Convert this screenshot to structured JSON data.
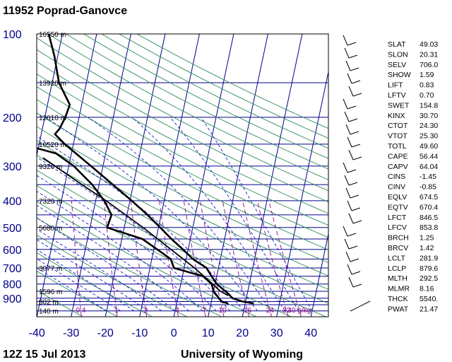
{
  "header": {
    "station_title": "11952  Poprad-Ganovce",
    "time_label": "12Z 15 Jul 2013",
    "source_label": "University of Wyoming"
  },
  "chart_data": {
    "type": "skew-t",
    "pressure_ticks": [
      100,
      200,
      300,
      400,
      500,
      600,
      700,
      800,
      900
    ],
    "temperature_ticks": [
      -40,
      -30,
      -20,
      -10,
      0,
      10,
      20,
      30,
      40
    ],
    "xlim": [
      -40,
      45
    ],
    "ylim_pressure": [
      1050,
      100
    ],
    "height_labels": [
      {
        "p": 100,
        "label": "16550 m"
      },
      {
        "p": 150,
        "label": "13920 m"
      },
      {
        "p": 200,
        "label": "12010 m"
      },
      {
        "p": 250,
        "label": "10520 m"
      },
      {
        "p": 300,
        "label": "9320 m"
      },
      {
        "p": 400,
        "label": "7320 m"
      },
      {
        "p": 500,
        "label": "5680 m"
      },
      {
        "p": 700,
        "label": "3077 m"
      },
      {
        "p": 850,
        "label": "1596 m"
      },
      {
        "p": 925,
        "label": "802 m"
      },
      {
        "p": 1000,
        "label": "140 m"
      }
    ],
    "mixing_ratio_labels": [
      "0.4",
      "1",
      "2",
      "4",
      "7",
      "10",
      "16",
      "24",
      "32",
      "40 g/kg"
    ],
    "temperature_profile": [
      {
        "p": 940,
        "t": 22.5
      },
      {
        "p": 925,
        "t": 19.0
      },
      {
        "p": 900,
        "t": 16.0
      },
      {
        "p": 850,
        "t": 13.5
      },
      {
        "p": 800,
        "t": 10.5
      },
      {
        "p": 750,
        "t": 8.5
      },
      {
        "p": 700,
        "t": 6.5
      },
      {
        "p": 650,
        "t": 2.0
      },
      {
        "p": 600,
        "t": -1.5
      },
      {
        "p": 550,
        "t": -5.5
      },
      {
        "p": 500,
        "t": -9.5
      },
      {
        "p": 450,
        "t": -14.0
      },
      {
        "p": 400,
        "t": -19.5
      },
      {
        "p": 350,
        "t": -26.0
      },
      {
        "p": 300,
        "t": -33.5
      },
      {
        "p": 250,
        "t": -42.5
      },
      {
        "p": 230,
        "t": -46.0
      },
      {
        "p": 220,
        "t": -45.0
      },
      {
        "p": 200,
        "t": -44.0
      },
      {
        "p": 180,
        "t": -43.5
      },
      {
        "p": 150,
        "t": -48.0
      },
      {
        "p": 120,
        "t": -51.0
      },
      {
        "p": 100,
        "t": -54.0
      }
    ],
    "dewpoint_profile": [
      {
        "p": 940,
        "t": 15.0
      },
      {
        "p": 925,
        "t": 13.0
      },
      {
        "p": 900,
        "t": 12.0
      },
      {
        "p": 850,
        "t": 10.0
      },
      {
        "p": 800,
        "t": 9.0
      },
      {
        "p": 750,
        "t": 6.0
      },
      {
        "p": 700,
        "t": -3.0
      },
      {
        "p": 650,
        "t": -4.5
      },
      {
        "p": 600,
        "t": -9.0
      },
      {
        "p": 550,
        "t": -14.0
      },
      {
        "p": 500,
        "t": -25.0
      },
      {
        "p": 450,
        "t": -24.5
      },
      {
        "p": 400,
        "t": -27.5
      },
      {
        "p": 350,
        "t": -32.0
      },
      {
        "p": 300,
        "t": -38.5
      },
      {
        "p": 270,
        "t": -44.5
      },
      {
        "p": 250,
        "t": -55.0
      },
      {
        "p": 220,
        "t": -64.0
      },
      {
        "p": 200,
        "t": -64.0
      },
      {
        "p": 180,
        "t": -63.0
      },
      {
        "p": 150,
        "t": -60.5
      },
      {
        "p": 130,
        "t": -58.0
      },
      {
        "p": 120,
        "t": -60.0
      },
      {
        "p": 100,
        "t": -64.0
      }
    ],
    "parcel_profile": [
      {
        "p": 880,
        "t": 14.5
      },
      {
        "p": 846,
        "t": 11.8
      },
      {
        "p": 800,
        "t": 9.3
      },
      {
        "p": 700,
        "t": 3.0
      },
      {
        "p": 600,
        "t": -5.0
      },
      {
        "p": 500,
        "t": -14.5
      },
      {
        "p": 400,
        "t": -27.0
      },
      {
        "p": 350,
        "t": -35.0
      },
      {
        "p": 300,
        "t": -44.0
      },
      {
        "p": 280,
        "t": -48.0
      }
    ]
  },
  "indices": [
    {
      "name": "SLAT",
      "value": "49.03"
    },
    {
      "name": "SLON",
      "value": "20.31"
    },
    {
      "name": "SELV",
      "value": "706.0"
    },
    {
      "name": "SHOW",
      "value": "1.59"
    },
    {
      "name": "LIFT",
      "value": "0.83"
    },
    {
      "name": "LFTV",
      "value": "0.70"
    },
    {
      "name": "SWET",
      "value": "154.8"
    },
    {
      "name": "KINX",
      "value": "30.70"
    },
    {
      "name": "CTOT",
      "value": "24.30"
    },
    {
      "name": "VTOT",
      "value": "25.30"
    },
    {
      "name": "TOTL",
      "value": "49.60"
    },
    {
      "name": "CAPE",
      "value": "56.44"
    },
    {
      "name": "CAPV",
      "value": "64.04"
    },
    {
      "name": "CINS",
      "value": "-1.45"
    },
    {
      "name": "CINV",
      "value": "-0.85"
    },
    {
      "name": "EQLV",
      "value": "674.5"
    },
    {
      "name": "EQTV",
      "value": "670.4"
    },
    {
      "name": "LFCT",
      "value": "846.5"
    },
    {
      "name": "LFCV",
      "value": "853.8"
    },
    {
      "name": "BRCH",
      "value": "1.25"
    },
    {
      "name": "BRCV",
      "value": "1.42"
    },
    {
      "name": "LCLT",
      "value": "281.9"
    },
    {
      "name": "LCLP",
      "value": "879.6"
    },
    {
      "name": "MLTH",
      "value": "292.5"
    },
    {
      "name": "MLMR",
      "value": "8.16"
    },
    {
      "name": "THCK",
      "value": "5540."
    },
    {
      "name": "PWAT",
      "value": "21.47"
    }
  ],
  "colors": {
    "isobar": "#00008b",
    "isotherm": "#00008b",
    "dry_adiabat": "#2e8b57",
    "moist_adiabat": "#0000cd",
    "mixing_ratio": "#8b008b",
    "profile": "#000000"
  }
}
